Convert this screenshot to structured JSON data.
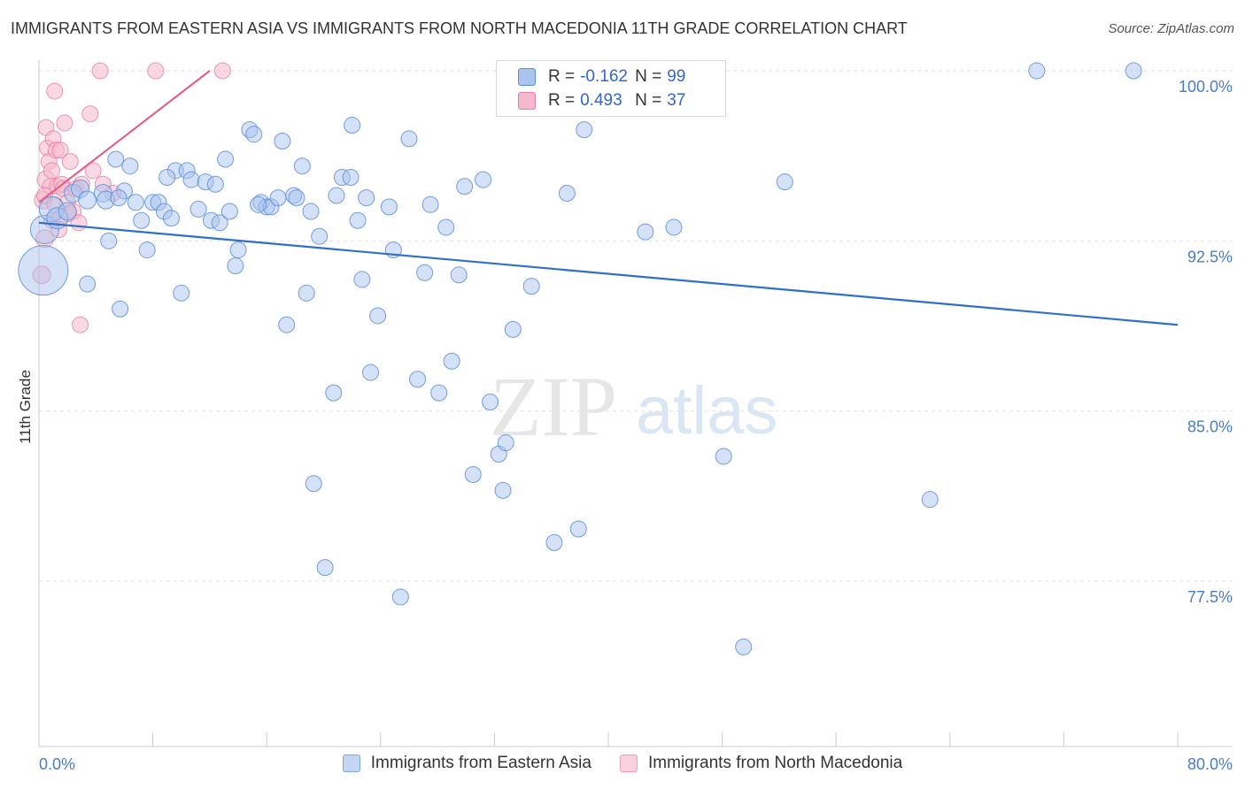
{
  "header": {
    "title": "IMMIGRANTS FROM EASTERN ASIA VS IMMIGRANTS FROM NORTH MACEDONIA 11TH GRADE CORRELATION CHART",
    "source": "Source: ZipAtlas.com"
  },
  "watermark": {
    "zip": "ZIP",
    "atlas": "atlas"
  },
  "legend": {
    "rows": [
      {
        "r_label": "R =",
        "r_value": "-0.162",
        "n_label": "N =",
        "n_value": "99"
      },
      {
        "r_label": "R =",
        "r_value": "0.493",
        "n_label": "N =",
        "n_value": "37"
      }
    ]
  },
  "colors": {
    "blue_fill": "#a9c4ee",
    "blue_stroke": "#5b8ed8",
    "blue_line": "#2f6fc9",
    "pink_fill": "#f6b8cc",
    "pink_stroke": "#e57fa0",
    "pink_line": "#e0628c",
    "tick_color": "#4a7cc9",
    "grid": "#e2e2e2"
  },
  "chart_data": {
    "type": "scatter",
    "title": "IMMIGRANTS FROM EASTERN ASIA VS IMMIGRANTS FROM NORTH MACEDONIA 11TH GRADE CORRELATION CHART",
    "xlabel": "",
    "ylabel": "11th Grade",
    "xlim": [
      0,
      80
    ],
    "ylim": [
      70.5,
      101
    ],
    "x_tick_labels": [
      "0.0%",
      "80.0%"
    ],
    "y_ticks": [
      77.5,
      85.0,
      92.5,
      100.0
    ],
    "y_tick_labels": [
      "77.5%",
      "85.0%",
      "92.5%",
      "100.0%"
    ],
    "grid": "horizontal dashed",
    "legend_position": "bottom-center",
    "series": [
      {
        "name": "Immigrants from Eastern Asia",
        "color": "#a9c4ee",
        "R": -0.162,
        "N": 99,
        "trend": {
          "x": [
            0,
            80
          ],
          "y": [
            93.3,
            88.8
          ]
        },
        "points": [
          [
            0.3,
            91.2,
            28
          ],
          [
            0.4,
            93.0,
            16
          ],
          [
            0.9,
            93.9,
            14
          ],
          [
            1.3,
            93.5,
            12
          ],
          [
            2.0,
            93.8,
            10
          ],
          [
            2.4,
            94.6,
            10
          ],
          [
            2.9,
            94.8,
            10
          ],
          [
            3.4,
            94.3,
            10
          ],
          [
            4.5,
            94.6,
            10
          ],
          [
            4.7,
            94.3,
            10
          ],
          [
            3.4,
            90.6,
            9
          ],
          [
            4.9,
            92.5,
            9
          ],
          [
            5.4,
            96.1,
            9
          ],
          [
            5.7,
            89.5,
            9
          ],
          [
            6.0,
            94.7,
            9
          ],
          [
            6.4,
            95.8,
            9
          ],
          [
            6.8,
            94.2,
            9
          ],
          [
            7.2,
            93.4,
            9
          ],
          [
            7.6,
            92.1,
            9
          ],
          [
            8.0,
            94.2,
            9
          ],
          [
            8.4,
            94.2,
            9
          ],
          [
            8.8,
            93.8,
            9
          ],
          [
            9.3,
            93.5,
            9
          ],
          [
            9.6,
            95.6,
            9
          ],
          [
            10.0,
            90.2,
            9
          ],
          [
            10.4,
            95.6,
            9
          ],
          [
            10.7,
            95.2,
            9
          ],
          [
            11.2,
            93.9,
            9
          ],
          [
            11.7,
            95.1,
            9
          ],
          [
            12.1,
            93.4,
            9
          ],
          [
            12.4,
            95.0,
            9
          ],
          [
            12.7,
            93.3,
            9
          ],
          [
            13.1,
            96.1,
            9
          ],
          [
            13.4,
            93.8,
            9
          ],
          [
            13.8,
            91.4,
            9
          ],
          [
            14.0,
            92.1,
            9
          ],
          [
            14.8,
            97.4,
            9
          ],
          [
            15.1,
            97.2,
            9
          ],
          [
            15.6,
            94.2,
            9
          ],
          [
            16.0,
            94.0,
            9
          ],
          [
            16.3,
            94.0,
            9
          ],
          [
            16.8,
            94.4,
            9
          ],
          [
            17.1,
            96.9,
            9
          ],
          [
            17.4,
            88.8,
            9
          ],
          [
            17.9,
            94.5,
            9
          ],
          [
            18.5,
            95.8,
            9
          ],
          [
            18.8,
            90.2,
            9
          ],
          [
            19.1,
            93.8,
            9
          ],
          [
            19.7,
            92.7,
            9
          ],
          [
            20.7,
            85.8,
            9
          ],
          [
            20.9,
            94.5,
            9
          ],
          [
            21.3,
            95.3,
            9
          ],
          [
            21.9,
            95.3,
            9
          ],
          [
            22.0,
            97.6,
            9
          ],
          [
            22.4,
            93.4,
            9
          ],
          [
            22.7,
            90.8,
            9
          ],
          [
            23.0,
            94.4,
            9
          ],
          [
            23.3,
            86.7,
            9
          ],
          [
            23.8,
            89.2,
            9
          ],
          [
            24.6,
            94.0,
            9
          ],
          [
            24.9,
            92.1,
            9
          ],
          [
            26.0,
            97.0,
            9
          ],
          [
            26.6,
            86.4,
            9
          ],
          [
            27.1,
            91.1,
            9
          ],
          [
            27.5,
            94.1,
            9
          ],
          [
            28.1,
            85.8,
            9
          ],
          [
            28.6,
            93.1,
            9
          ],
          [
            29.0,
            87.2,
            9
          ],
          [
            29.5,
            91.0,
            9
          ],
          [
            29.9,
            94.9,
            9
          ],
          [
            30.5,
            82.2,
            9
          ],
          [
            31.2,
            95.2,
            9
          ],
          [
            31.7,
            85.4,
            9
          ],
          [
            32.3,
            83.1,
            9
          ],
          [
            32.6,
            81.5,
            9
          ],
          [
            32.8,
            83.6,
            9
          ],
          [
            33.3,
            88.6,
            9
          ],
          [
            34.6,
            90.5,
            9
          ],
          [
            36.2,
            79.2,
            9
          ],
          [
            37.1,
            94.6,
            9
          ],
          [
            37.7,
            100.0,
            9
          ],
          [
            37.9,
            79.8,
            9
          ],
          [
            38.3,
            97.4,
            9
          ],
          [
            41.2,
            100.0,
            9
          ],
          [
            42.6,
            92.9,
            9
          ],
          [
            44.6,
            93.1,
            9
          ],
          [
            48.1,
            83.0,
            9
          ],
          [
            49.5,
            74.6,
            9
          ],
          [
            52.4,
            95.1,
            9
          ],
          [
            62.6,
            81.1,
            9
          ],
          [
            70.1,
            100.0,
            9
          ],
          [
            76.9,
            100.0,
            9
          ],
          [
            19.3,
            81.8,
            9
          ],
          [
            20.1,
            78.1,
            9
          ],
          [
            25.4,
            76.8,
            9
          ],
          [
            15.4,
            94.1,
            9
          ],
          [
            18.1,
            94.4,
            9
          ],
          [
            9.0,
            95.3,
            9
          ],
          [
            5.6,
            94.4,
            9
          ]
        ]
      },
      {
        "name": "Immigrants from North Macedonia",
        "color": "#f6b8cc",
        "R": 0.493,
        "N": 37,
        "trend": {
          "x": [
            0,
            12
          ],
          "y": [
            94.2,
            100.0
          ]
        },
        "points": [
          [
            0.2,
            91.0,
            10
          ],
          [
            0.3,
            94.3,
            10
          ],
          [
            0.4,
            92.6,
            10
          ],
          [
            0.5,
            95.2,
            10
          ],
          [
            0.5,
            97.5,
            9
          ],
          [
            0.6,
            96.6,
            9
          ],
          [
            0.7,
            96.0,
            9
          ],
          [
            0.8,
            94.9,
            9
          ],
          [
            0.9,
            93.4,
            9
          ],
          [
            0.9,
            95.6,
            9
          ],
          [
            1.0,
            97.0,
            9
          ],
          [
            1.1,
            99.1,
            9
          ],
          [
            1.2,
            96.5,
            9
          ],
          [
            1.3,
            94.9,
            9
          ],
          [
            1.4,
            93.5,
            9
          ],
          [
            1.4,
            93.0,
            9
          ],
          [
            1.5,
            96.5,
            9
          ],
          [
            1.6,
            95.0,
            9
          ],
          [
            1.7,
            94.8,
            9
          ],
          [
            1.8,
            97.7,
            9
          ],
          [
            2.0,
            94.2,
            9
          ],
          [
            2.1,
            93.7,
            9
          ],
          [
            2.2,
            96.0,
            9
          ],
          [
            2.4,
            93.8,
            9
          ],
          [
            2.6,
            94.8,
            9
          ],
          [
            2.8,
            93.3,
            9
          ],
          [
            2.9,
            88.8,
            9
          ],
          [
            3.0,
            95.0,
            9
          ],
          [
            3.6,
            98.1,
            9
          ],
          [
            3.8,
            95.6,
            9
          ],
          [
            4.3,
            100.0,
            9
          ],
          [
            4.5,
            95.0,
            9
          ],
          [
            8.2,
            100.0,
            9
          ],
          [
            12.9,
            100.0,
            9
          ],
          [
            5.2,
            94.6,
            9
          ],
          [
            0.4,
            94.5,
            9
          ],
          [
            1.1,
            94.1,
            9
          ]
        ]
      }
    ]
  },
  "bottom_legend": {
    "items": [
      {
        "label": "Immigrants from Eastern Asia"
      },
      {
        "label": "Immigrants from North Macedonia"
      }
    ]
  }
}
